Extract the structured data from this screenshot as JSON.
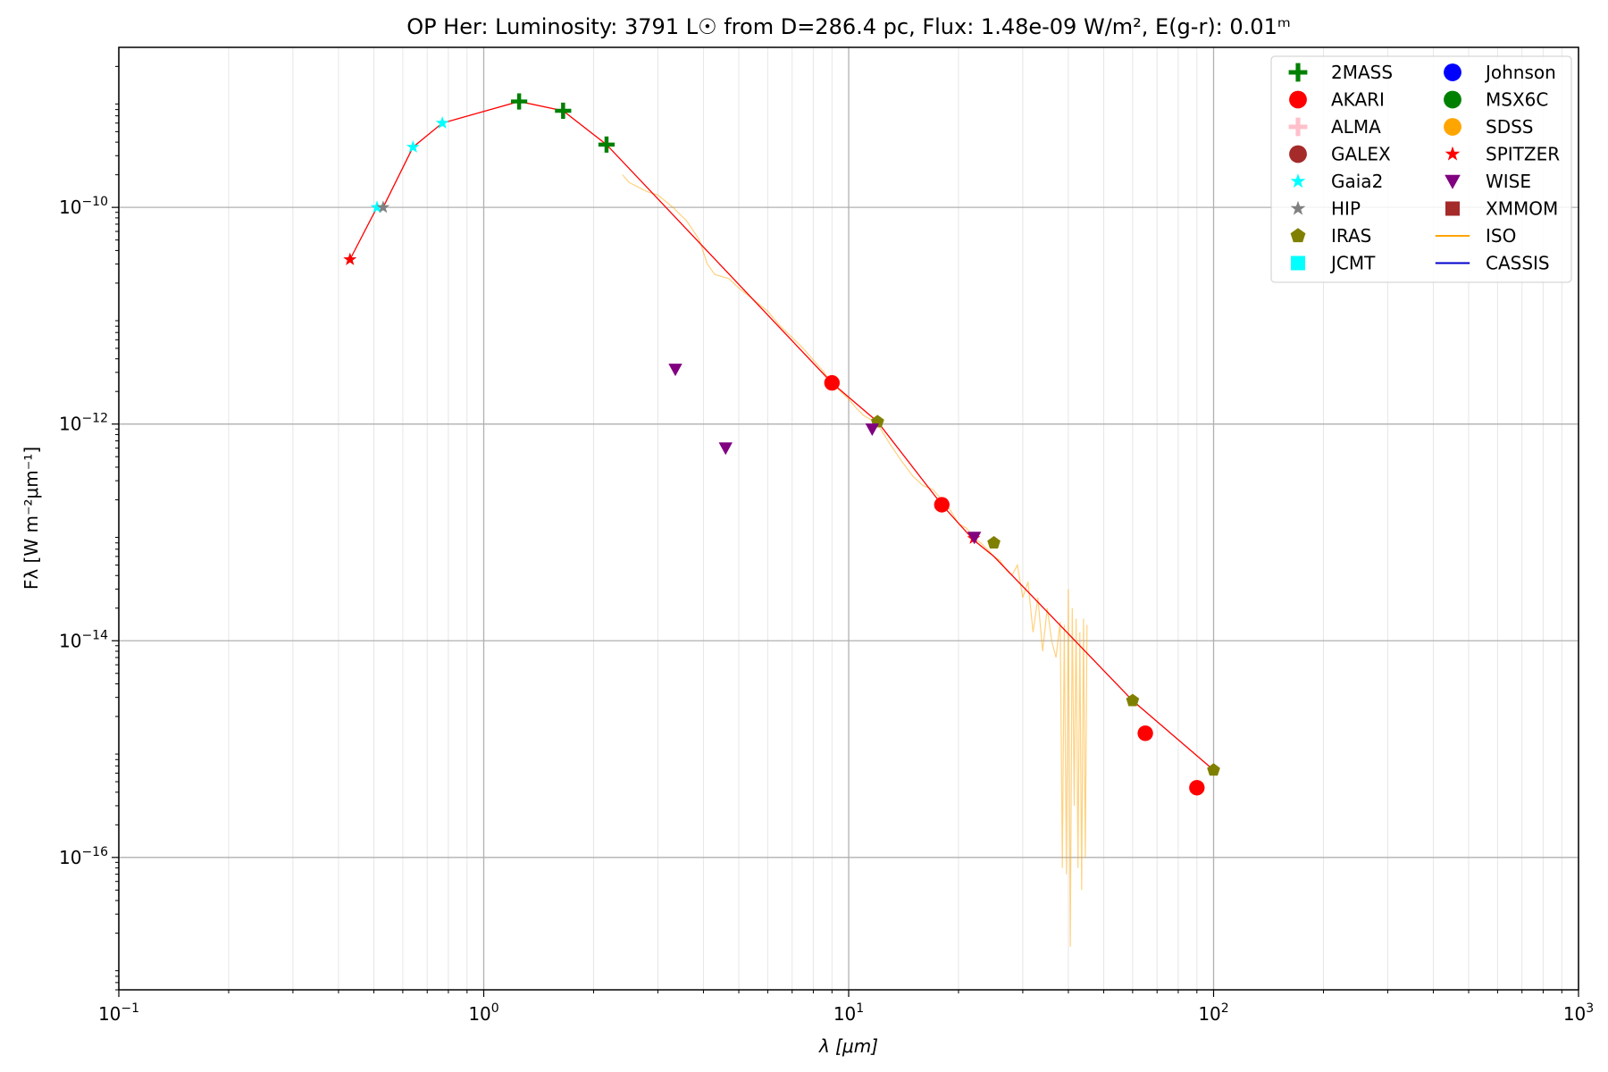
{
  "chart_data": {
    "type": "scatter",
    "title": "OP Her:  Luminosity: 3791 L☉ from D=286.4 pc, Flux: 1.48e-09 W/m², E(g-r): 0.01ᵐ",
    "xlabel": "λ [μm]",
    "ylabel": "Fλ [W m⁻²μm⁻¹]",
    "x_scale": "log",
    "y_scale": "log",
    "xlim": [
      0.1,
      1000
    ],
    "ylim": [
      6e-18,
      3e-09
    ],
    "x_ticks": [
      {
        "value": 0.1,
        "base": "10",
        "exp": "−1"
      },
      {
        "value": 1,
        "base": "10",
        "exp": "0"
      },
      {
        "value": 10,
        "base": "10",
        "exp": "1"
      },
      {
        "value": 100,
        "base": "10",
        "exp": "2"
      },
      {
        "value": 1000,
        "base": "10",
        "exp": "3"
      }
    ],
    "y_ticks": [
      {
        "value": 1e-16,
        "base": "10",
        "exp": "−16"
      },
      {
        "value": 1e-14,
        "base": "10",
        "exp": "−14"
      },
      {
        "value": 1e-12,
        "base": "10",
        "exp": "−12"
      },
      {
        "value": 1e-10,
        "base": "10",
        "exp": "−10"
      }
    ],
    "grid": true,
    "legend_position": "top-right",
    "legend": [
      {
        "name": "2MASS",
        "marker": "plus",
        "color": "#008000"
      },
      {
        "name": "AKARI",
        "marker": "circle",
        "color": "#ff0000"
      },
      {
        "name": "ALMA",
        "marker": "plus",
        "color": "#ffc0cb"
      },
      {
        "name": "GALEX",
        "marker": "circle",
        "color": "#a52a2a"
      },
      {
        "name": "Gaia2",
        "marker": "star",
        "color": "#00ffff"
      },
      {
        "name": "HIP",
        "marker": "star",
        "color": "#808080"
      },
      {
        "name": "IRAS",
        "marker": "pentagon",
        "color": "#808000"
      },
      {
        "name": "JCMT",
        "marker": "square",
        "color": "#00ffff"
      },
      {
        "name": "Johnson",
        "marker": "circle",
        "color": "#0000ff"
      },
      {
        "name": "MSX6C",
        "marker": "circle",
        "color": "#008000"
      },
      {
        "name": "SDSS",
        "marker": "circle",
        "color": "#ffa500"
      },
      {
        "name": "SPITZER",
        "marker": "star",
        "color": "#ff0000"
      },
      {
        "name": "WISE",
        "marker": "triangle-down",
        "color": "#800080"
      },
      {
        "name": "XMMOM",
        "marker": "square",
        "color": "#a52a2a"
      },
      {
        "name": "ISO",
        "marker": "line",
        "color": "#ffa500"
      },
      {
        "name": "CASSIS",
        "marker": "line",
        "color": "#0000cc"
      }
    ],
    "model_line": {
      "color": "#ff0000",
      "points": [
        [
          0.43,
          3.3e-11
        ],
        [
          0.51,
          1e-10
        ],
        [
          0.53,
          1e-10
        ],
        [
          0.64,
          3.6e-10
        ],
        [
          0.77,
          6e-10
        ],
        [
          1.25,
          9.5e-10
        ],
        [
          1.65,
          7.8e-10
        ],
        [
          2.17,
          3.8e-10
        ],
        [
          9.0,
          2.4e-12
        ],
        [
          12.0,
          1.05e-12
        ],
        [
          18.0,
          1.8e-13
        ],
        [
          22.0,
          8.5e-14
        ],
        [
          25.0,
          6e-14
        ],
        [
          60.0,
          2.8e-15
        ],
        [
          100.0,
          6.4e-16
        ]
      ]
    },
    "series": [
      {
        "name": "2MASS",
        "marker": "plus",
        "color": "#008000",
        "x": [
          1.25,
          1.65,
          2.17
        ],
        "y": [
          9.5e-10,
          7.8e-10,
          3.8e-10
        ]
      },
      {
        "name": "AKARI",
        "marker": "circle",
        "color": "#ff0000",
        "x": [
          9.0,
          18.0,
          65.0,
          90.0
        ],
        "y": [
          2.4e-12,
          1.8e-13,
          1.4e-15,
          4.4e-16
        ]
      },
      {
        "name": "Gaia2",
        "marker": "star",
        "color": "#00ffff",
        "x": [
          0.51,
          0.64,
          0.77
        ],
        "y": [
          1e-10,
          3.6e-10,
          6e-10
        ]
      },
      {
        "name": "HIP",
        "marker": "star",
        "color": "#808080",
        "x": [
          0.43,
          0.53
        ],
        "y": [
          3.3e-11,
          1e-10
        ]
      },
      {
        "name": "IRAS",
        "marker": "pentagon",
        "color": "#808000",
        "x": [
          12.0,
          25.0,
          60.0,
          100.0
        ],
        "y": [
          1.05e-12,
          8e-14,
          2.8e-15,
          6.4e-16
        ]
      },
      {
        "name": "SPITZER",
        "marker": "star",
        "color": "#ff0000",
        "x": [
          0.43,
          22.0
        ],
        "y": [
          3.3e-11,
          8.8e-14
        ]
      },
      {
        "name": "WISE",
        "marker": "triangle-down",
        "color": "#800080",
        "x": [
          3.35,
          4.6,
          11.6,
          22.1
        ],
        "y": [
          3.2e-12,
          6e-13,
          9e-13,
          9e-14
        ]
      }
    ],
    "iso_spectrum": {
      "name": "ISO",
      "color": "#ffa500",
      "x": [
        2.4,
        2.5,
        2.8,
        3.0,
        3.3,
        3.6,
        3.9,
        4.1,
        4.3,
        4.7,
        5.0,
        5.5,
        6.0,
        6.5,
        7.0,
        7.5,
        8.0,
        8.5,
        9.0,
        9.5,
        10.0,
        10.5,
        11.0,
        11.5,
        12.0,
        13.0,
        14.0,
        15.0,
        16.0,
        17.0,
        18.0,
        19.0,
        20.0,
        21.0,
        22.0,
        23.0,
        24.0,
        25.0,
        26.0,
        27.0,
        28.0,
        29.0,
        30.0,
        31.0,
        32.0,
        33.0,
        34.0,
        35.0,
        36.0,
        37.0,
        38.0,
        38.5,
        39.0,
        39.5,
        40.0,
        40.5,
        41.0,
        41.5,
        42.0,
        42.5,
        43.0,
        43.5,
        44.0,
        44.5,
        45.0
      ],
      "y": [
        2e-10,
        1.7e-10,
        1.4e-10,
        1.3e-10,
        1e-10,
        7.5e-11,
        5e-11,
        3e-11,
        2.4e-11,
        2.2e-11,
        1.8e-11,
        1.4e-11,
        1.1e-11,
        8e-12,
        6.3e-12,
        5e-12,
        3.9e-12,
        3.1e-12,
        2.4e-12,
        2e-12,
        1.7e-12,
        1.4e-12,
        1.2e-12,
        1.1e-12,
        1e-12,
        6.5e-13,
        4.5e-13,
        3.3e-13,
        2.7e-13,
        2.5e-13,
        2e-13,
        1.6e-13,
        1.2e-13,
        1.1e-13,
        9e-14,
        8e-14,
        7e-14,
        6e-14,
        5.5e-14,
        4.5e-14,
        4e-14,
        5e-14,
        2.5e-14,
        3.5e-14,
        1.2e-14,
        2.5e-14,
        8e-15,
        2e-14,
        1e-14,
        7e-15,
        1.5e-14,
        8e-17,
        1.4e-14,
        7e-17,
        3e-14,
        1.5e-17,
        2e-14,
        3e-16,
        1.6e-14,
        8e-17,
        1.2e-14,
        5e-17,
        1.6e-14,
        1e-16,
        1.4e-14
      ]
    }
  }
}
